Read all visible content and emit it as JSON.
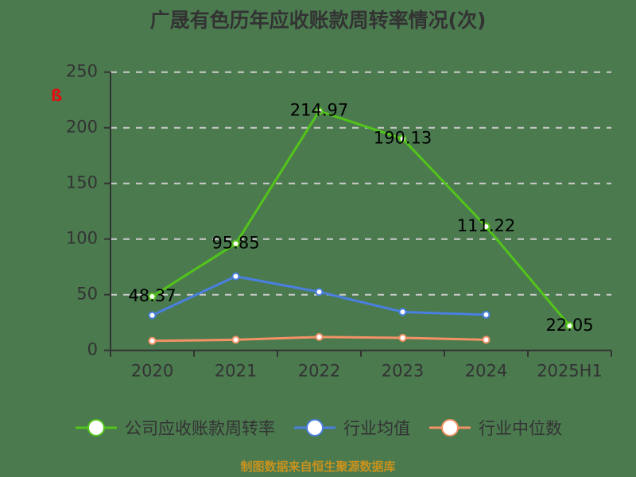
{
  "title": "广晟有色历年应收账款周转率情况(次)",
  "footer": "制图数据来自恒生聚源数据库",
  "watermark_glyph": "ß",
  "colors": {
    "background": "#4b7a4f",
    "company": "#52c41a",
    "industry_avg": "#4a7fe0",
    "industry_median": "#f29266",
    "grid": "#cccccc",
    "axis": "#333333",
    "footer": "#c8921e"
  },
  "legend": [
    {
      "label": "公司应收账款周转率",
      "color": "#52c41a"
    },
    {
      "label": "行业均值",
      "color": "#4a7fe0"
    },
    {
      "label": "行业中位数",
      "color": "#f29266"
    }
  ],
  "chart_data": {
    "type": "line",
    "title": "广晟有色历年应收账款周转率情况(次)",
    "xlabel": "",
    "ylabel": "",
    "categories": [
      "2020",
      "2021",
      "2022",
      "2023",
      "2024",
      "2025H1"
    ],
    "ylim": [
      0,
      250
    ],
    "yticks": [
      0,
      50,
      100,
      150,
      200,
      250
    ],
    "grid": true,
    "legend_position": "bottom",
    "series": [
      {
        "name": "公司应收账款周转率",
        "values": [
          48.37,
          95.85,
          214.97,
          190.13,
          111.22,
          22.05
        ],
        "labels": [
          "48.37",
          "95.85",
          "214.97",
          "190.13",
          "111.22",
          "22.05"
        ]
      },
      {
        "name": "行业均值",
        "values": [
          31.5,
          66.5,
          52.5,
          34.5,
          32.0,
          null
        ]
      },
      {
        "name": "行业中位数",
        "values": [
          8.5,
          9.5,
          12.0,
          11.2,
          9.5,
          null
        ]
      }
    ]
  }
}
